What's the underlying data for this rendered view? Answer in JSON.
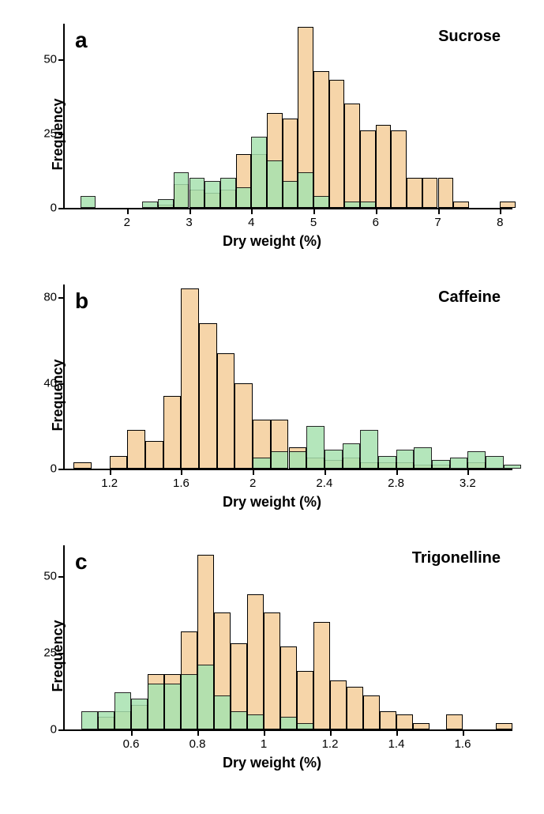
{
  "panels": [
    {
      "id": "a",
      "panel_label": "a",
      "series_label": "Sucrose",
      "ylabel": "Frequency",
      "xlabel": "Dry weight (%)",
      "xlim": [
        1.0,
        8.2
      ],
      "ylim": [
        0,
        62
      ],
      "yticks": [
        0,
        25,
        50
      ],
      "xticks": [
        2,
        3,
        4,
        5,
        6,
        7,
        8
      ],
      "bar_width_x": 0.25,
      "bg": "#ffffff",
      "tan_color": "#f6d5a9",
      "green_color": "#a8e2b0",
      "bars_tan": [
        {
          "x": 2.5,
          "y": 1
        },
        {
          "x": 2.75,
          "y": 8
        },
        {
          "x": 3.0,
          "y": 6
        },
        {
          "x": 3.25,
          "y": 5
        },
        {
          "x": 3.5,
          "y": 6
        },
        {
          "x": 3.75,
          "y": 18
        },
        {
          "x": 4.0,
          "y": 18
        },
        {
          "x": 4.25,
          "y": 32
        },
        {
          "x": 4.5,
          "y": 30
        },
        {
          "x": 4.75,
          "y": 61
        },
        {
          "x": 5.0,
          "y": 46
        },
        {
          "x": 5.25,
          "y": 43
        },
        {
          "x": 5.5,
          "y": 35
        },
        {
          "x": 5.75,
          "y": 26
        },
        {
          "x": 6.0,
          "y": 28
        },
        {
          "x": 6.25,
          "y": 26
        },
        {
          "x": 6.5,
          "y": 10
        },
        {
          "x": 6.75,
          "y": 10
        },
        {
          "x": 7.0,
          "y": 10
        },
        {
          "x": 7.25,
          "y": 2
        },
        {
          "x": 8.0,
          "y": 2
        }
      ],
      "bars_green": [
        {
          "x": 1.25,
          "y": 4
        },
        {
          "x": 2.25,
          "y": 2
        },
        {
          "x": 2.5,
          "y": 3
        },
        {
          "x": 2.75,
          "y": 12
        },
        {
          "x": 3.0,
          "y": 10
        },
        {
          "x": 3.25,
          "y": 9
        },
        {
          "x": 3.5,
          "y": 10
        },
        {
          "x": 3.75,
          "y": 7
        },
        {
          "x": 4.0,
          "y": 24
        },
        {
          "x": 4.25,
          "y": 16
        },
        {
          "x": 4.5,
          "y": 9
        },
        {
          "x": 4.75,
          "y": 12
        },
        {
          "x": 5.0,
          "y": 4
        },
        {
          "x": 5.5,
          "y": 2
        },
        {
          "x": 5.75,
          "y": 2
        }
      ]
    },
    {
      "id": "b",
      "panel_label": "b",
      "series_label": "Caffeine",
      "ylabel": "Frequency",
      "xlabel": "Dry weight (%)",
      "xlim": [
        0.95,
        3.45
      ],
      "ylim": [
        0,
        86
      ],
      "yticks": [
        0,
        40,
        80
      ],
      "xticks": [
        1.2,
        1.6,
        2.0,
        2.4,
        2.8,
        3.2
      ],
      "bar_width_x": 0.1,
      "bg": "#ffffff",
      "tan_color": "#f6d5a9",
      "green_color": "#a8e2b0",
      "bars_tan": [
        {
          "x": 1.0,
          "y": 3
        },
        {
          "x": 1.2,
          "y": 6
        },
        {
          "x": 1.3,
          "y": 18
        },
        {
          "x": 1.4,
          "y": 13
        },
        {
          "x": 1.5,
          "y": 34
        },
        {
          "x": 1.6,
          "y": 84
        },
        {
          "x": 1.7,
          "y": 68
        },
        {
          "x": 1.8,
          "y": 54
        },
        {
          "x": 1.9,
          "y": 40
        },
        {
          "x": 2.0,
          "y": 23
        },
        {
          "x": 2.1,
          "y": 23
        },
        {
          "x": 2.2,
          "y": 10
        },
        {
          "x": 2.3,
          "y": 5
        },
        {
          "x": 2.4,
          "y": 4
        },
        {
          "x": 2.5,
          "y": 5
        },
        {
          "x": 2.6,
          "y": 3
        },
        {
          "x": 2.7,
          "y": 3
        },
        {
          "x": 2.8,
          "y": 3
        },
        {
          "x": 2.9,
          "y": 2
        },
        {
          "x": 3.0,
          "y": 2
        },
        {
          "x": 3.2,
          "y": 3
        }
      ],
      "bars_green": [
        {
          "x": 2.0,
          "y": 5
        },
        {
          "x": 2.1,
          "y": 8
        },
        {
          "x": 2.2,
          "y": 8
        },
        {
          "x": 2.3,
          "y": 20
        },
        {
          "x": 2.4,
          "y": 9
        },
        {
          "x": 2.5,
          "y": 12
        },
        {
          "x": 2.6,
          "y": 18
        },
        {
          "x": 2.7,
          "y": 6
        },
        {
          "x": 2.8,
          "y": 9
        },
        {
          "x": 2.9,
          "y": 10
        },
        {
          "x": 3.0,
          "y": 4
        },
        {
          "x": 3.1,
          "y": 5
        },
        {
          "x": 3.2,
          "y": 8
        },
        {
          "x": 3.3,
          "y": 6
        },
        {
          "x": 3.4,
          "y": 2
        }
      ]
    },
    {
      "id": "c",
      "panel_label": "c",
      "series_label": "Trigonelline",
      "ylabel": "Frequency",
      "xlabel": "Dry weight (%)",
      "xlim": [
        0.4,
        1.75
      ],
      "ylim": [
        0,
        60
      ],
      "yticks": [
        0,
        25,
        50
      ],
      "xticks": [
        0.6,
        0.8,
        1.0,
        1.2,
        1.4,
        1.6
      ],
      "bar_width_x": 0.05,
      "bg": "#ffffff",
      "tan_color": "#f6d5a9",
      "green_color": "#a8e2b0",
      "bars_tan": [
        {
          "x": 0.5,
          "y": 4
        },
        {
          "x": 0.55,
          "y": 6
        },
        {
          "x": 0.6,
          "y": 8
        },
        {
          "x": 0.65,
          "y": 18
        },
        {
          "x": 0.7,
          "y": 18
        },
        {
          "x": 0.75,
          "y": 32
        },
        {
          "x": 0.8,
          "y": 57
        },
        {
          "x": 0.85,
          "y": 38
        },
        {
          "x": 0.9,
          "y": 28
        },
        {
          "x": 0.95,
          "y": 44
        },
        {
          "x": 1.0,
          "y": 38
        },
        {
          "x": 1.05,
          "y": 27
        },
        {
          "x": 1.1,
          "y": 19
        },
        {
          "x": 1.15,
          "y": 35
        },
        {
          "x": 1.2,
          "y": 16
        },
        {
          "x": 1.25,
          "y": 14
        },
        {
          "x": 1.3,
          "y": 11
        },
        {
          "x": 1.35,
          "y": 6
        },
        {
          "x": 1.4,
          "y": 5
        },
        {
          "x": 1.45,
          "y": 2
        },
        {
          "x": 1.55,
          "y": 5
        },
        {
          "x": 1.7,
          "y": 2
        }
      ],
      "bars_green": [
        {
          "x": 0.45,
          "y": 6
        },
        {
          "x": 0.5,
          "y": 6
        },
        {
          "x": 0.55,
          "y": 12
        },
        {
          "x": 0.6,
          "y": 10
        },
        {
          "x": 0.65,
          "y": 15
        },
        {
          "x": 0.7,
          "y": 15
        },
        {
          "x": 0.75,
          "y": 18
        },
        {
          "x": 0.8,
          "y": 21
        },
        {
          "x": 0.85,
          "y": 11
        },
        {
          "x": 0.9,
          "y": 6
        },
        {
          "x": 0.95,
          "y": 5
        },
        {
          "x": 1.05,
          "y": 4
        },
        {
          "x": 1.1,
          "y": 2
        }
      ]
    }
  ]
}
